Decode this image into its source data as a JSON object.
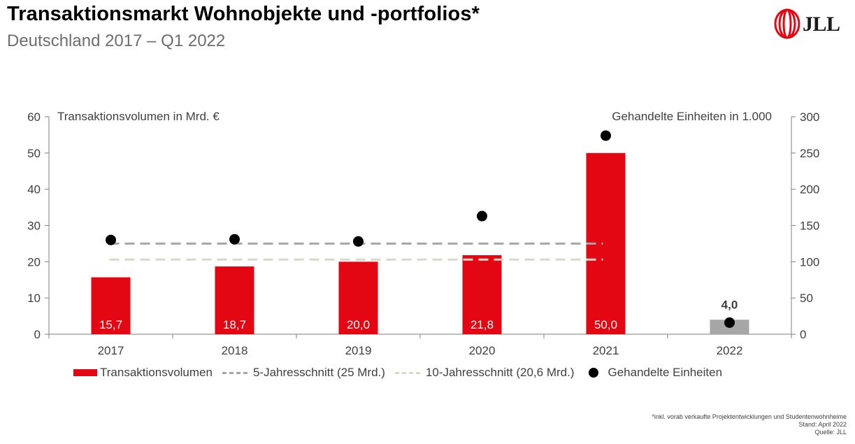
{
  "header": {
    "title": "Transaktionsmarkt Wohnobjekte und -portfolios*",
    "subtitle": "Deutschland 2017 – Q1 2022"
  },
  "logo": {
    "text": "JLL",
    "color": "#e30613"
  },
  "chart_data": {
    "type": "bar",
    "categories": [
      "2017",
      "2018",
      "2019",
      "2020",
      "2021",
      "2022"
    ],
    "series": [
      {
        "name": "Transaktionsvolumen",
        "type": "bar",
        "axis": "left",
        "values": [
          15.7,
          18.7,
          20.0,
          21.8,
          50.0,
          4.0
        ],
        "labels": [
          "15,7",
          "18,7",
          "20,0",
          "21,8",
          "50,0",
          "4,0"
        ],
        "colors": [
          "#e30613",
          "#e30613",
          "#e30613",
          "#e30613",
          "#e30613",
          "#a6a6a6"
        ]
      },
      {
        "name": "5-Jahresschnitt (25 Mrd.)",
        "type": "reference-line",
        "axis": "left",
        "value": 25,
        "color": "#a6a6a6"
      },
      {
        "name": "10-Jahresschnitt (20,6 Mrd.)",
        "type": "reference-line",
        "axis": "left",
        "value": 20.6,
        "color": "#d9d9c8"
      },
      {
        "name": "Gehandelte Einheiten",
        "type": "scatter",
        "axis": "right",
        "values": [
          130,
          131,
          128,
          163,
          274,
          16
        ],
        "color": "#000000"
      }
    ],
    "left_axis": {
      "label": "Transaktionsvolumen in Mrd. €",
      "ylim": [
        0,
        60
      ],
      "ticks": [
        "0",
        "10",
        "20",
        "30",
        "40",
        "50",
        "60"
      ]
    },
    "right_axis": {
      "label": "Gehandelte Einheiten in 1.000",
      "ylim": [
        0,
        300
      ],
      "ticks": [
        "0",
        "50",
        "100",
        "150",
        "200",
        "250",
        "300"
      ]
    },
    "grid": false,
    "legend_position": "bottom"
  },
  "footnotes": {
    "note": "*inkl. vorab verkaufte Projektentwicklungen und Studentenwohnheime",
    "stand": "Stand: April 2022",
    "quelle": "Quelle: JLL"
  }
}
